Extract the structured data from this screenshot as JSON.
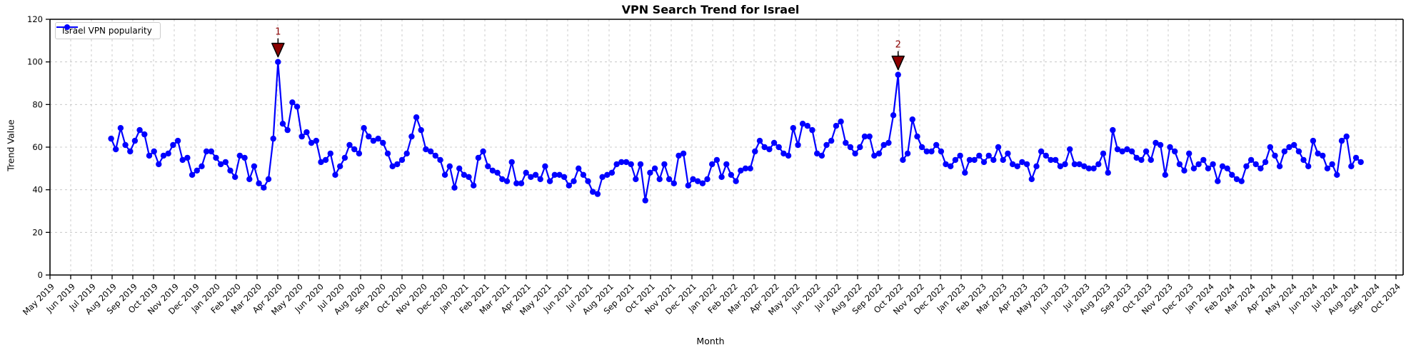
{
  "title": "VPN Search Trend for Israel",
  "legend": {
    "series_label": "Israel VPN popularity"
  },
  "axes": {
    "xlabel": "Month",
    "ylabel": "Trend Value"
  },
  "colors": {
    "line": "#0000ff",
    "annotation": "#8b0000",
    "annotation_edge": "#000000",
    "grid": "#bfbfbf",
    "text": "#000000",
    "spine": "#000000"
  },
  "chart_data": {
    "type": "line",
    "title": "VPN Search Trend for Israel",
    "xlabel": "Month",
    "ylabel": "Trend Value",
    "ylim": [
      0,
      120
    ],
    "y_ticks": [
      0,
      20,
      40,
      60,
      80,
      100,
      120
    ],
    "grid": "dashed both axes",
    "legend_position": "upper left",
    "categories": [
      "May 2019",
      "Jun 2019",
      "Jul 2019",
      "Aug 2019",
      "Sep 2019",
      "Oct 2019",
      "Nov 2019",
      "Dec 2019",
      "Jan 2020",
      "Feb 2020",
      "Mar 2020",
      "Apr 2020",
      "May 2020",
      "Jun 2020",
      "Jul 2020",
      "Aug 2020",
      "Sep 2020",
      "Oct 2020",
      "Nov 2020",
      "Dec 2020",
      "Jan 2021",
      "Feb 2021",
      "Mar 2021",
      "Apr 2021",
      "May 2021",
      "Jun 2021",
      "Jul 2021",
      "Aug 2021",
      "Sep 2021",
      "Oct 2021",
      "Nov 2021",
      "Dec 2021",
      "Jan 2022",
      "Feb 2022",
      "Mar 2022",
      "Apr 2022",
      "May 2022",
      "Jun 2022",
      "Jul 2022",
      "Aug 2022",
      "Sep 2022",
      "Oct 2022",
      "Nov 2022",
      "Dec 2022",
      "Jan 2023",
      "Feb 2023",
      "Mar 2023",
      "Apr 2023",
      "May 2023",
      "Jun 2023",
      "Jul 2023",
      "Aug 2023",
      "Sep 2023",
      "Oct 2023",
      "Nov 2023",
      "Dec 2023",
      "Jan 2024",
      "Feb 2024",
      "Mar 2024",
      "Apr 2024",
      "May 2024",
      "Jun 2024",
      "Jul 2024",
      "Aug 2024",
      "Sep 2024",
      "Oct 2024"
    ],
    "series": [
      {
        "name": "Israel VPN popularity",
        "cadence": "weekly",
        "start_tick": 2.95,
        "end_tick": 63.3,
        "values": [
          64,
          59,
          69,
          61,
          58,
          63,
          68,
          66,
          56,
          58,
          52,
          56,
          57,
          61,
          63,
          54,
          55,
          47,
          49,
          51,
          58,
          58,
          55,
          52,
          53,
          49,
          46,
          56,
          55,
          45,
          51,
          43,
          41,
          45,
          64,
          100,
          71,
          68,
          81,
          79,
          65,
          67,
          62,
          63,
          53,
          54,
          57,
          47,
          51,
          55,
          61,
          59,
          57,
          69,
          65,
          63,
          64,
          62,
          57,
          51,
          52,
          54,
          57,
          65,
          74,
          68,
          59,
          58,
          56,
          54,
          47,
          51,
          41,
          50,
          47,
          46,
          42,
          55,
          58,
          51,
          49,
          48,
          45,
          44,
          53,
          43,
          43,
          48,
          46,
          47,
          45,
          51,
          44,
          47,
          47,
          46,
          42,
          44,
          50,
          47,
          44,
          39,
          38,
          46,
          47,
          48,
          52,
          53,
          53,
          52,
          45,
          52,
          35,
          48,
          50,
          45,
          52,
          45,
          43,
          56,
          57,
          42,
          45,
          44,
          43,
          45,
          52,
          54,
          46,
          52,
          47,
          44,
          49,
          50,
          50,
          58,
          63,
          60,
          59,
          62,
          60,
          57,
          56,
          69,
          61,
          71,
          70,
          68,
          57,
          56,
          61,
          63,
          70,
          72,
          62,
          60,
          57,
          60,
          65,
          65,
          56,
          57,
          61,
          62,
          75,
          94,
          54,
          57,
          73,
          65,
          60,
          58,
          58,
          61,
          58,
          52,
          51,
          54,
          56,
          48,
          54,
          54,
          56,
          53,
          56,
          54,
          60,
          54,
          57,
          52,
          51,
          53,
          52,
          45,
          51,
          58,
          56,
          54,
          54,
          51,
          52,
          59,
          52,
          52,
          51,
          50,
          50,
          52,
          57,
          48,
          68,
          59,
          58,
          59,
          58,
          55,
          54,
          58,
          54,
          62,
          61,
          47,
          60,
          58,
          52,
          49,
          57,
          50,
          52,
          54,
          50,
          52,
          44,
          51,
          50,
          47,
          45,
          44,
          51,
          54,
          52,
          50,
          53,
          60,
          56,
          51,
          58,
          60,
          61,
          58,
          54,
          51,
          63,
          57,
          56,
          50,
          52,
          47,
          63,
          65,
          51,
          55,
          53
        ]
      }
    ],
    "annotations": [
      {
        "label": "1",
        "point_index": 35,
        "value": 100,
        "at": "Apr 2020"
      },
      {
        "label": "2",
        "point_index": 165,
        "value": 94,
        "at": "Oct 2022"
      }
    ]
  }
}
